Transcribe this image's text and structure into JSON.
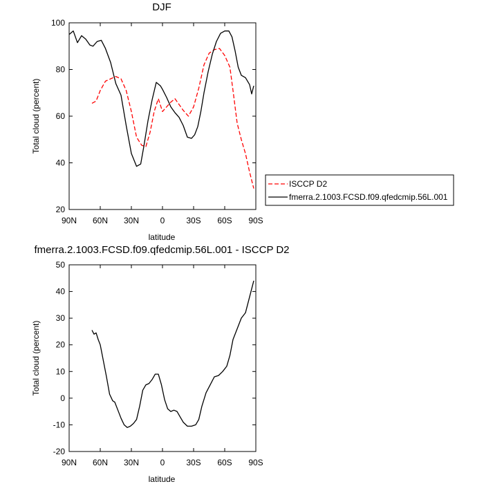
{
  "chart_data": [
    {
      "type": "line",
      "title": "DJF",
      "xlabel": "latitude",
      "ylabel": "Total cloud (percent)",
      "xlim": [
        90,
        -90
      ],
      "ylim": [
        20,
        100
      ],
      "x_ticks": [
        {
          "value": 90,
          "label": "90N"
        },
        {
          "value": 60,
          "label": "60N"
        },
        {
          "value": 30,
          "label": "30N"
        },
        {
          "value": 0,
          "label": "0"
        },
        {
          "value": -30,
          "label": "30S"
        },
        {
          "value": -60,
          "label": "60S"
        },
        {
          "value": -90,
          "label": "90S"
        }
      ],
      "y_ticks": [
        {
          "value": 20,
          "label": "20"
        },
        {
          "value": 40,
          "label": "40"
        },
        {
          "value": 60,
          "label": "60"
        },
        {
          "value": 80,
          "label": "80"
        },
        {
          "value": 100,
          "label": "100"
        }
      ],
      "legend_position": "right",
      "series": [
        {
          "name": "ISCCP D2",
          "color": "#ff0000",
          "dash": "dashed",
          "x": [
            68,
            64,
            60,
            55,
            50,
            45,
            40,
            35,
            30,
            25,
            20,
            16,
            12,
            8,
            4,
            0,
            -4,
            -8,
            -12,
            -16,
            -20,
            -25,
            -30,
            -35,
            -40,
            -45,
            -50,
            -55,
            -60,
            -65,
            -68,
            -72,
            -76,
            -80,
            -84,
            -88
          ],
          "y": [
            65.5,
            66.5,
            71,
            75,
            76,
            77,
            76,
            71,
            62,
            51,
            47.5,
            47,
            53,
            62,
            67.5,
            62,
            64,
            66,
            67.5,
            65,
            62.5,
            60,
            64,
            72,
            82,
            87,
            88.5,
            89,
            86,
            81,
            71,
            57,
            50,
            44,
            36,
            29
          ]
        },
        {
          "name": "fmerra.2.1003.FCSD.f09.qfedcmip.56L.001",
          "color": "#000000",
          "dash": "solid",
          "x": [
            90,
            86,
            82,
            78,
            74,
            70,
            67,
            63,
            59,
            55,
            50,
            45,
            40,
            35,
            30,
            25,
            21,
            18,
            14,
            10,
            6,
            2,
            0,
            -4,
            -8,
            -12,
            -16,
            -20,
            -24,
            -28,
            -31,
            -34,
            -37,
            -40,
            -44,
            -48,
            -52,
            -56,
            -60,
            -64,
            -67,
            -70,
            -73,
            -76,
            -80,
            -84,
            -86,
            -88
          ],
          "y": [
            95,
            96.5,
            91.5,
            94.5,
            93,
            90.5,
            90,
            92,
            92.5,
            89,
            83,
            74,
            69,
            56,
            44,
            38.5,
            39.5,
            47,
            58,
            67,
            74.5,
            73,
            71.5,
            68,
            64,
            61.5,
            59.5,
            56,
            51,
            50.5,
            52,
            55.5,
            62,
            70,
            79,
            86.5,
            92,
            95.5,
            96.5,
            96.5,
            94,
            88,
            81,
            77.5,
            76.5,
            73.5,
            69.5,
            73
          ]
        }
      ]
    },
    {
      "type": "line",
      "title": "fmerra.2.1003.FCSD.f09.qfedcmip.56L.001 - ISCCP D2",
      "xlabel": "latitude",
      "ylabel": "Total cloud (percent)",
      "xlim": [
        90,
        -90
      ],
      "ylim": [
        -20,
        50
      ],
      "x_ticks": [
        {
          "value": 90,
          "label": "90N"
        },
        {
          "value": 60,
          "label": "60N"
        },
        {
          "value": 30,
          "label": "30N"
        },
        {
          "value": 0,
          "label": "0"
        },
        {
          "value": -30,
          "label": "30S"
        },
        {
          "value": -60,
          "label": "60S"
        },
        {
          "value": -90,
          "label": "90S"
        }
      ],
      "y_ticks": [
        {
          "value": -20,
          "label": "-20"
        },
        {
          "value": -10,
          "label": "-10"
        },
        {
          "value": 0,
          "label": "0"
        },
        {
          "value": 10,
          "label": "10"
        },
        {
          "value": 20,
          "label": "20"
        },
        {
          "value": 30,
          "label": "30"
        },
        {
          "value": 40,
          "label": "40"
        },
        {
          "value": 50,
          "label": "50"
        }
      ],
      "series": [
        {
          "color": "#000000",
          "dash": "solid",
          "x": [
            68,
            66,
            64,
            62,
            60,
            57,
            54,
            51,
            48,
            46,
            43,
            40,
            37,
            34,
            31,
            28,
            25,
            22,
            19,
            16,
            13,
            10,
            7,
            4,
            1,
            -2,
            -5,
            -8,
            -11,
            -14,
            -17,
            -20,
            -24,
            -28,
            -32,
            -35,
            -38,
            -42,
            -46,
            -50,
            -54,
            -58,
            -62,
            -65,
            -68,
            -72,
            -76,
            -80,
            -84,
            -88
          ],
          "y": [
            25.5,
            24,
            24.5,
            22,
            20,
            14,
            8,
            1.5,
            -1,
            -1.5,
            -4.5,
            -7.5,
            -10,
            -11,
            -10.5,
            -9.5,
            -8,
            -3,
            3,
            5,
            5.5,
            7,
            9,
            9,
            5,
            -0.5,
            -4,
            -5,
            -4.5,
            -5,
            -7,
            -9,
            -10.5,
            -10.5,
            -10,
            -8,
            -3,
            2,
            5,
            8,
            8.5,
            10,
            12,
            16,
            22,
            26,
            30,
            32,
            38,
            44
          ]
        }
      ]
    }
  ]
}
